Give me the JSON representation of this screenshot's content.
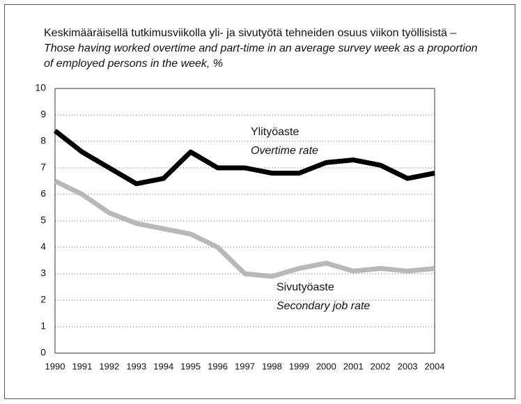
{
  "chart_data": {
    "type": "line",
    "title": "Keskimääräisellä tutkimusviikolla yli- ja sivutyötä tehneiden osuus viikon työllisistä",
    "subtitle": "– Those having worked overtime and part-time in an average survey week as a proportion of employed persons in the week, %",
    "categories": [
      "1990",
      "1991",
      "1992",
      "1993",
      "1994",
      "1995",
      "1996",
      "1997",
      "1998",
      "1999",
      "2000",
      "2001",
      "2002",
      "2003",
      "2004"
    ],
    "series": [
      {
        "name": "Ylityöaste",
        "name_en": "Overtime rate",
        "color": "#000000",
        "values": [
          8.4,
          7.6,
          7.0,
          6.4,
          6.6,
          7.6,
          7.0,
          7.0,
          6.8,
          6.8,
          7.2,
          7.3,
          7.1,
          6.6,
          6.8
        ]
      },
      {
        "name": "Sivutyöaste",
        "name_en": "Secondary job rate",
        "color": "#b8b8b8",
        "values": [
          6.5,
          6.0,
          5.3,
          4.9,
          4.7,
          4.5,
          4.0,
          3.0,
          2.9,
          3.2,
          3.4,
          3.1,
          3.2,
          3.1,
          3.2
        ]
      }
    ],
    "ylim": [
      0,
      10
    ],
    "yticks": [
      0,
      1,
      2,
      3,
      4,
      5,
      6,
      7,
      8,
      9,
      10
    ],
    "grid": true
  }
}
